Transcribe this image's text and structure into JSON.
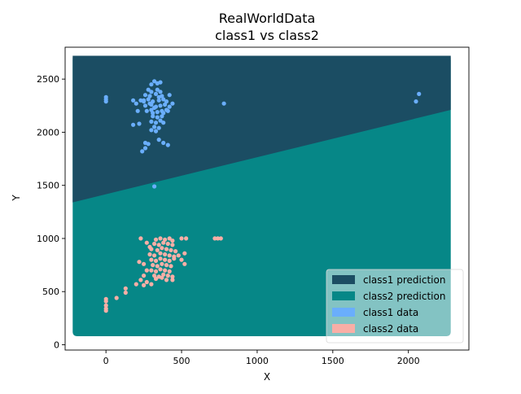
{
  "chart_data": {
    "type": "scatter",
    "title_line1": "RealWorldData",
    "title_line2": "class1 vs  class2",
    "xlabel": "X",
    "ylabel": "Y",
    "xlim": [
      -270,
      2400
    ],
    "ylim": [
      -50,
      2800
    ],
    "grid": false,
    "legend_position": "lower-right",
    "xticks": [
      0,
      500,
      1000,
      1500,
      2000
    ],
    "yticks": [
      0,
      500,
      1000,
      1500,
      2000,
      2500
    ],
    "region_extent": {
      "x": [
        -220,
        2280
      ],
      "y": [
        80,
        2720
      ]
    },
    "decision_boundary": [
      [
        -220,
        1340
      ],
      [
        2280,
        2210
      ]
    ],
    "colors": {
      "class1_prediction": "#1b4d63",
      "class2_prediction": "#068787",
      "class1_data": "#6aaefc",
      "class2_data": "#f9aea6"
    },
    "legend": [
      {
        "label": "class1 prediction",
        "color": "#1b4d63"
      },
      {
        "label": "class2 prediction",
        "color": "#068787"
      },
      {
        "label": "class1 data",
        "color": "#6aaefc"
      },
      {
        "label": "class2 data",
        "color": "#f9aea6"
      }
    ],
    "series": [
      {
        "name": "class1 data",
        "points": [
          [
            300,
            2450
          ],
          [
            320,
            2480
          ],
          [
            340,
            2460
          ],
          [
            360,
            2470
          ],
          [
            280,
            2400
          ],
          [
            300,
            2380
          ],
          [
            340,
            2400
          ],
          [
            360,
            2380
          ],
          [
            260,
            2350
          ],
          [
            290,
            2340
          ],
          [
            330,
            2360
          ],
          [
            370,
            2340
          ],
          [
            250,
            2300
          ],
          [
            280,
            2310
          ],
          [
            310,
            2290
          ],
          [
            350,
            2300
          ],
          [
            380,
            2310
          ],
          [
            400,
            2290
          ],
          [
            260,
            2250
          ],
          [
            300,
            2260
          ],
          [
            330,
            2240
          ],
          [
            360,
            2250
          ],
          [
            390,
            2260
          ],
          [
            420,
            2240
          ],
          [
            270,
            2200
          ],
          [
            300,
            2210
          ],
          [
            340,
            2190
          ],
          [
            370,
            2200
          ],
          [
            400,
            2210
          ],
          [
            310,
            2150
          ],
          [
            340,
            2140
          ],
          [
            370,
            2150
          ],
          [
            300,
            2100
          ],
          [
            330,
            2090
          ],
          [
            360,
            2110
          ],
          [
            320,
            2050
          ],
          [
            350,
            2040
          ],
          [
            330,
            2010
          ],
          [
            300,
            2020
          ],
          [
            310,
            2180
          ],
          [
            320,
            2230
          ],
          [
            350,
            2330
          ],
          [
            290,
            2270
          ],
          [
            380,
            2180
          ],
          [
            410,
            2200
          ],
          [
            380,
            2090
          ],
          [
            420,
            2350
          ],
          [
            440,
            2270
          ],
          [
            230,
            2300
          ],
          [
            250,
            2290
          ],
          [
            210,
            2200
          ],
          [
            220,
            2080
          ],
          [
            180,
            2070
          ],
          [
            180,
            2300
          ],
          [
            200,
            2270
          ],
          [
            260,
            1900
          ],
          [
            280,
            1890
          ],
          [
            240,
            1820
          ],
          [
            260,
            1850
          ],
          [
            350,
            1930
          ],
          [
            380,
            1900
          ],
          [
            410,
            1880
          ],
          [
            0,
            2330
          ],
          [
            0,
            2310
          ],
          [
            0,
            2290
          ],
          [
            780,
            2270
          ],
          [
            2050,
            2290
          ],
          [
            2070,
            2360
          ],
          [
            320,
            1490
          ]
        ]
      },
      {
        "name": "class2 data",
        "points": [
          [
            330,
            990
          ],
          [
            360,
            1000
          ],
          [
            390,
            990
          ],
          [
            420,
            1000
          ],
          [
            440,
            980
          ],
          [
            320,
            950
          ],
          [
            350,
            940
          ],
          [
            380,
            960
          ],
          [
            410,
            950
          ],
          [
            440,
            940
          ],
          [
            300,
            900
          ],
          [
            340,
            890
          ],
          [
            370,
            910
          ],
          [
            400,
            900
          ],
          [
            430,
            890
          ],
          [
            460,
            880
          ],
          [
            290,
            850
          ],
          [
            320,
            840
          ],
          [
            360,
            860
          ],
          [
            390,
            850
          ],
          [
            420,
            840
          ],
          [
            450,
            830
          ],
          [
            480,
            840
          ],
          [
            300,
            800
          ],
          [
            330,
            790
          ],
          [
            360,
            810
          ],
          [
            390,
            800
          ],
          [
            420,
            790
          ],
          [
            450,
            810
          ],
          [
            310,
            750
          ],
          [
            340,
            740
          ],
          [
            370,
            760
          ],
          [
            400,
            750
          ],
          [
            430,
            740
          ],
          [
            300,
            700
          ],
          [
            330,
            690
          ],
          [
            360,
            710
          ],
          [
            390,
            700
          ],
          [
            420,
            690
          ],
          [
            320,
            650
          ],
          [
            350,
            640
          ],
          [
            380,
            660
          ],
          [
            410,
            650
          ],
          [
            440,
            640
          ],
          [
            330,
            620
          ],
          [
            370,
            630
          ],
          [
            400,
            610
          ],
          [
            440,
            610
          ],
          [
            230,
            610
          ],
          [
            250,
            650
          ],
          [
            200,
            570
          ],
          [
            250,
            560
          ],
          [
            270,
            590
          ],
          [
            300,
            570
          ],
          [
            220,
            780
          ],
          [
            250,
            760
          ],
          [
            270,
            700
          ],
          [
            230,
            1000
          ],
          [
            270,
            960
          ],
          [
            290,
            920
          ],
          [
            500,
            1000
          ],
          [
            530,
            1000
          ],
          [
            520,
            860
          ],
          [
            500,
            800
          ],
          [
            520,
            760
          ],
          [
            720,
            1000
          ],
          [
            740,
            1000
          ],
          [
            760,
            1000
          ],
          [
            130,
            530
          ],
          [
            130,
            490
          ],
          [
            70,
            440
          ],
          [
            0,
            430
          ],
          [
            0,
            410
          ],
          [
            0,
            370
          ],
          [
            0,
            340
          ],
          [
            0,
            320
          ]
        ]
      }
    ]
  }
}
